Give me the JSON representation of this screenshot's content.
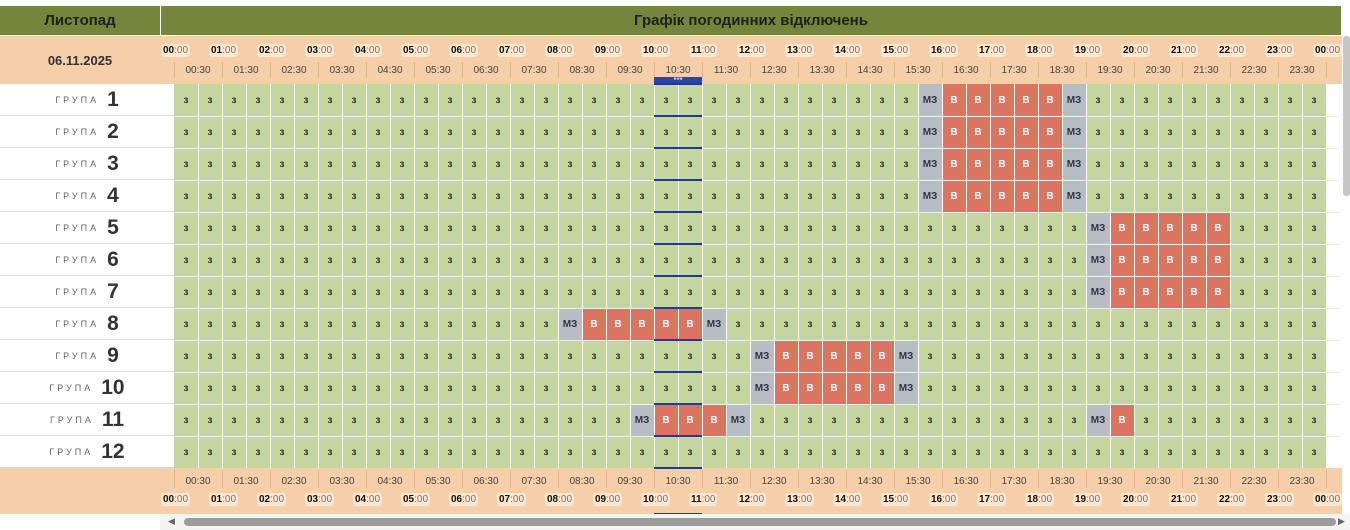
{
  "header": {
    "month": "Листопад",
    "title": "Графік погодинних відключень",
    "date": "06.11.2025"
  },
  "hour_labels": [
    {
      "h": "00",
      "m": ":00"
    },
    {
      "h": "01",
      "m": ":00"
    },
    {
      "h": "02",
      "m": ":00"
    },
    {
      "h": "03",
      "m": ":00"
    },
    {
      "h": "04",
      "m": ":00"
    },
    {
      "h": "05",
      "m": ":00"
    },
    {
      "h": "06",
      "m": ":00"
    },
    {
      "h": "07",
      "m": ":00"
    },
    {
      "h": "08",
      "m": ":00"
    },
    {
      "h": "09",
      "m": ":00"
    },
    {
      "h": "10",
      "m": ":00"
    },
    {
      "h": "11",
      "m": ":00"
    },
    {
      "h": "12",
      "m": ":00"
    },
    {
      "h": "13",
      "m": ":00"
    },
    {
      "h": "14",
      "m": ":00"
    },
    {
      "h": "15",
      "m": ":00"
    },
    {
      "h": "16",
      "m": ":00"
    },
    {
      "h": "17",
      "m": ":00"
    },
    {
      "h": "18",
      "m": ":00"
    },
    {
      "h": "19",
      "m": ":00"
    },
    {
      "h": "20",
      "m": ":00"
    },
    {
      "h": "21",
      "m": ":00"
    },
    {
      "h": "22",
      "m": ":00"
    },
    {
      "h": "23",
      "m": ":00"
    },
    {
      "h": "00",
      "m": ":00"
    }
  ],
  "half_labels": [
    "00:30",
    "01:30",
    "02:30",
    "03:30",
    "04:30",
    "05:30",
    "06:30",
    "07:30",
    "08:30",
    "09:30",
    "10:30",
    "11:30",
    "12:30",
    "13:30",
    "14:30",
    "15:30",
    "16:30",
    "17:30",
    "18:30",
    "19:30",
    "20:30",
    "21:30",
    "22:30",
    "23:30"
  ],
  "group_label": "ГРУПА",
  "now_marker": "***",
  "legend": {
    "z": "з",
    "mz": "мз",
    "v": "в"
  },
  "colors": {
    "on": "#c5d59f",
    "maybe": "#b4bec4",
    "off": "#dd7461",
    "header": "#77853c",
    "band": "#f5cfa9",
    "now": "#2b44a8"
  },
  "groups": [
    {
      "number": "1",
      "outages": [
        [
          31,
          "mz"
        ],
        [
          32,
          "v"
        ],
        [
          33,
          "v"
        ],
        [
          34,
          "v"
        ],
        [
          35,
          "v"
        ],
        [
          36,
          "v"
        ],
        [
          37,
          "mz"
        ]
      ]
    },
    {
      "number": "2",
      "outages": [
        [
          31,
          "mz"
        ],
        [
          32,
          "v"
        ],
        [
          33,
          "v"
        ],
        [
          34,
          "v"
        ],
        [
          35,
          "v"
        ],
        [
          36,
          "v"
        ],
        [
          37,
          "mz"
        ]
      ]
    },
    {
      "number": "3",
      "outages": [
        [
          31,
          "mz"
        ],
        [
          32,
          "v"
        ],
        [
          33,
          "v"
        ],
        [
          34,
          "v"
        ],
        [
          35,
          "v"
        ],
        [
          36,
          "v"
        ],
        [
          37,
          "mz"
        ]
      ]
    },
    {
      "number": "4",
      "outages": [
        [
          31,
          "mz"
        ],
        [
          32,
          "v"
        ],
        [
          33,
          "v"
        ],
        [
          34,
          "v"
        ],
        [
          35,
          "v"
        ],
        [
          36,
          "v"
        ],
        [
          37,
          "mz"
        ]
      ]
    },
    {
      "number": "5",
      "outages": [
        [
          38,
          "mz"
        ],
        [
          39,
          "v"
        ],
        [
          40,
          "v"
        ],
        [
          41,
          "v"
        ],
        [
          42,
          "v"
        ],
        [
          43,
          "v"
        ]
      ]
    },
    {
      "number": "6",
      "outages": [
        [
          38,
          "mz"
        ],
        [
          39,
          "v"
        ],
        [
          40,
          "v"
        ],
        [
          41,
          "v"
        ],
        [
          42,
          "v"
        ],
        [
          43,
          "v"
        ]
      ]
    },
    {
      "number": "7",
      "outages": [
        [
          38,
          "mz"
        ],
        [
          39,
          "v"
        ],
        [
          40,
          "v"
        ],
        [
          41,
          "v"
        ],
        [
          42,
          "v"
        ],
        [
          43,
          "v"
        ]
      ]
    },
    {
      "number": "8",
      "outages": [
        [
          16,
          "mz"
        ],
        [
          17,
          "v"
        ],
        [
          18,
          "v"
        ],
        [
          19,
          "v"
        ],
        [
          20,
          "v"
        ],
        [
          21,
          "v"
        ],
        [
          22,
          "mz"
        ]
      ]
    },
    {
      "number": "9",
      "outages": [
        [
          24,
          "mz"
        ],
        [
          25,
          "v"
        ],
        [
          26,
          "v"
        ],
        [
          27,
          "v"
        ],
        [
          28,
          "v"
        ],
        [
          29,
          "v"
        ],
        [
          30,
          "mz"
        ]
      ]
    },
    {
      "number": "10",
      "outages": [
        [
          24,
          "mz"
        ],
        [
          25,
          "v"
        ],
        [
          26,
          "v"
        ],
        [
          27,
          "v"
        ],
        [
          28,
          "v"
        ],
        [
          29,
          "v"
        ],
        [
          30,
          "mz"
        ]
      ]
    },
    {
      "number": "11",
      "outages": [
        [
          19,
          "mz"
        ],
        [
          20,
          "v"
        ],
        [
          21,
          "v"
        ],
        [
          22,
          "v"
        ],
        [
          23,
          "mz"
        ],
        [
          38,
          "mz"
        ],
        [
          39,
          "v"
        ]
      ]
    },
    {
      "number": "12",
      "outages": []
    }
  ]
}
